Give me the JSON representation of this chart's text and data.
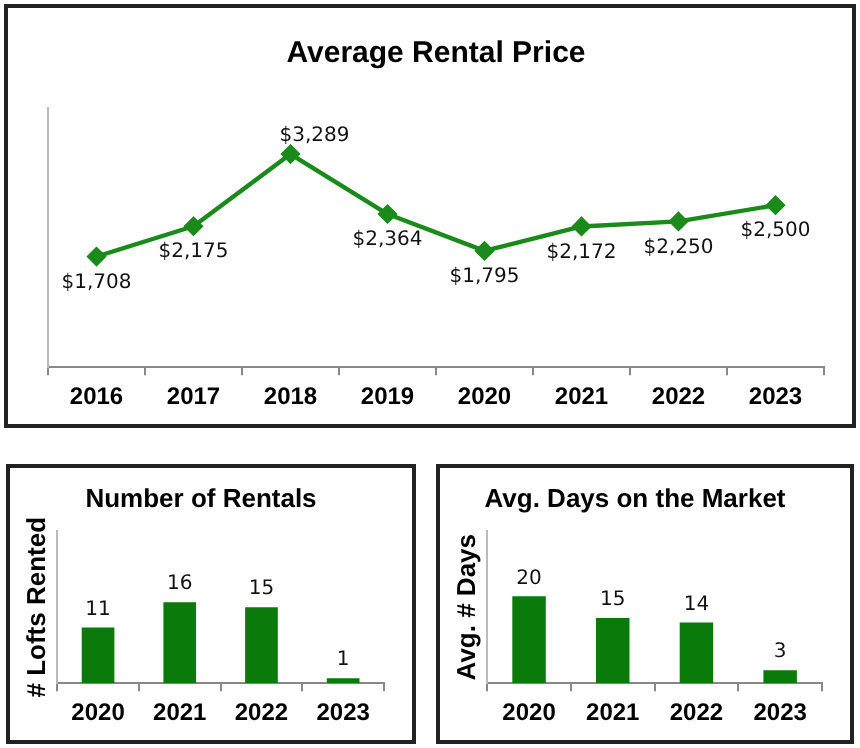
{
  "chart_data": [
    {
      "type": "line",
      "title": "Average Rental Price",
      "categories": [
        "2016",
        "2017",
        "2018",
        "2019",
        "2020",
        "2021",
        "2022",
        "2023"
      ],
      "series": [
        {
          "color": "#1a8a1a",
          "values": [
            1708,
            2175,
            3289,
            2364,
            1795,
            2172,
            2250,
            2500
          ],
          "value_labels": [
            "$1,708",
            "$2,175",
            "$3,289",
            "$2,364",
            "$1,795",
            "$2,172",
            "$2,250",
            "$2,500"
          ]
        }
      ],
      "ylim": [
        0,
        4000
      ],
      "tick_labels": "x",
      "grid": false,
      "legend": false,
      "marker": "diamond",
      "line_style": "solid"
    },
    {
      "type": "bar",
      "title": "Number of Rentals",
      "ylabel": "# Lofts Rented",
      "categories": [
        "2020",
        "2021",
        "2022",
        "2023"
      ],
      "series": [
        {
          "color": "#0a7a0a",
          "values": [
            11,
            16,
            15,
            1
          ]
        }
      ],
      "ylim": [
        0,
        30
      ],
      "tick_labels": "x",
      "grid": false,
      "legend": false,
      "data_labels": true
    },
    {
      "type": "bar",
      "title": "Avg. Days on the Market",
      "ylabel": "Avg. # Days",
      "categories": [
        "2020",
        "2021",
        "2022",
        "2023"
      ],
      "series": [
        {
          "color": "#0a7a0a",
          "values": [
            20,
            15,
            14,
            3
          ]
        }
      ],
      "ylim": [
        0,
        35
      ],
      "tick_labels": "x",
      "grid": false,
      "legend": false,
      "data_labels": true
    }
  ]
}
